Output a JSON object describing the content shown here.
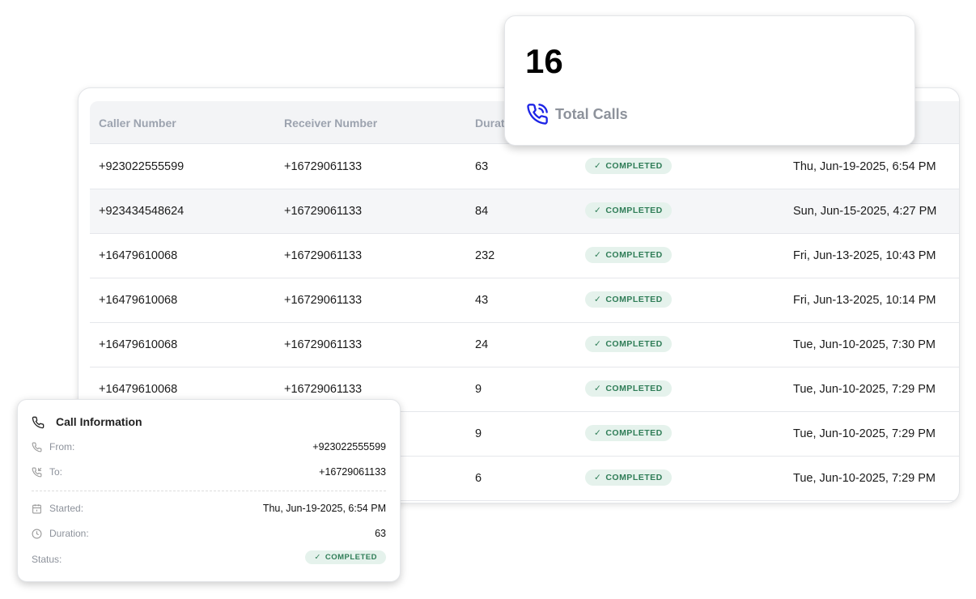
{
  "table": {
    "columns": [
      "Caller Number",
      "Receiver Number",
      "Duration"
    ],
    "rows": [
      {
        "caller": "+923022555599",
        "receiver": "+16729061133",
        "duration": "63",
        "status": "COMPLETED",
        "date": "Thu, Jun-19-2025, 6:54 PM"
      },
      {
        "caller": "+923434548624",
        "receiver": "+16729061133",
        "duration": "84",
        "status": "COMPLETED",
        "date": "Sun, Jun-15-2025, 4:27 PM"
      },
      {
        "caller": "+16479610068",
        "receiver": "+16729061133",
        "duration": "232",
        "status": "COMPLETED",
        "date": "Fri, Jun-13-2025, 10:43 PM"
      },
      {
        "caller": "+16479610068",
        "receiver": "+16729061133",
        "duration": "43",
        "status": "COMPLETED",
        "date": "Fri, Jun-13-2025, 10:14 PM"
      },
      {
        "caller": "+16479610068",
        "receiver": "+16729061133",
        "duration": "24",
        "status": "COMPLETED",
        "date": "Tue, Jun-10-2025, 7:30 PM"
      },
      {
        "caller": "+16479610068",
        "receiver": "+16729061133",
        "duration": "9",
        "status": "COMPLETED",
        "date": "Tue, Jun-10-2025, 7:29 PM"
      },
      {
        "caller": "",
        "receiver": "",
        "duration": "9",
        "status": "COMPLETED",
        "date": "Tue, Jun-10-2025, 7:29 PM"
      },
      {
        "caller": "",
        "receiver": "",
        "duration": "6",
        "status": "COMPLETED",
        "date": "Tue, Jun-10-2025, 7:29 PM"
      }
    ]
  },
  "stat": {
    "value": "16",
    "label": "Total Calls",
    "icon": "phone-ringing-icon",
    "icon_color": "#1d24e6"
  },
  "call_info": {
    "title": "Call Information",
    "from_label": "From:",
    "from": "+923022555599",
    "to_label": "To:",
    "to": "+16729061133",
    "started_label": "Started:",
    "started": "Thu, Jun-19-2025, 6:54 PM",
    "duration_label": "Duration:",
    "duration": "63",
    "status_label": "Status:",
    "status": "COMPLETED"
  },
  "colors": {
    "badge_bg": "#e5f2ec",
    "badge_text": "#2f7d57"
  }
}
